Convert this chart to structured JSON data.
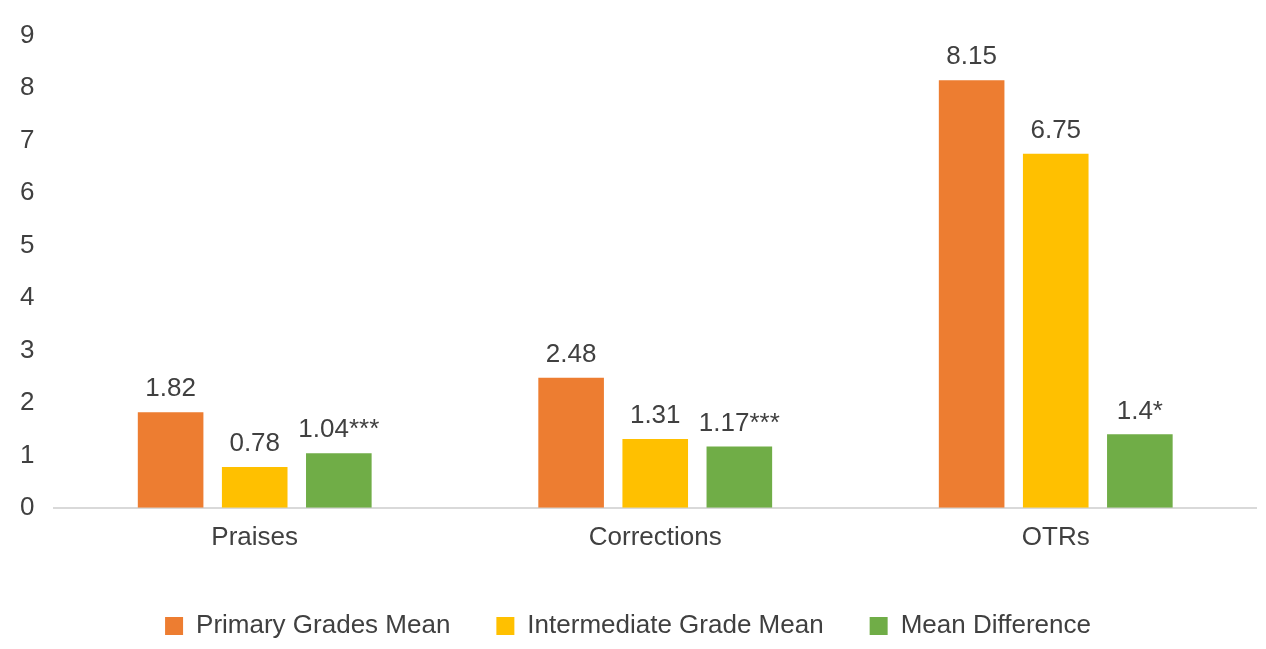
{
  "chart_data": {
    "type": "bar",
    "categories": [
      "Praises",
      "Corrections",
      "OTRs"
    ],
    "series": [
      {
        "name": "Primary Grades Mean",
        "color": "#ed7d31",
        "values": [
          1.82,
          2.48,
          8.15
        ],
        "value_labels": [
          "1.82",
          "2.48",
          "8.15"
        ]
      },
      {
        "name": "Intermediate Grade Mean",
        "color": "#ffc000",
        "values": [
          0.78,
          1.31,
          6.75
        ],
        "value_labels": [
          "0.78",
          "1.31",
          "6.75"
        ]
      },
      {
        "name": "Mean Difference",
        "color": "#70ad47",
        "values": [
          1.04,
          1.17,
          1.4
        ],
        "value_labels": [
          "1.04***",
          "1.17***",
          "1.4*"
        ]
      }
    ],
    "ylim": [
      0,
      9
    ],
    "yticks": [
      0,
      1,
      2,
      3,
      4,
      5,
      6,
      7,
      8,
      9
    ],
    "grid": false,
    "legend": "bottom"
  }
}
